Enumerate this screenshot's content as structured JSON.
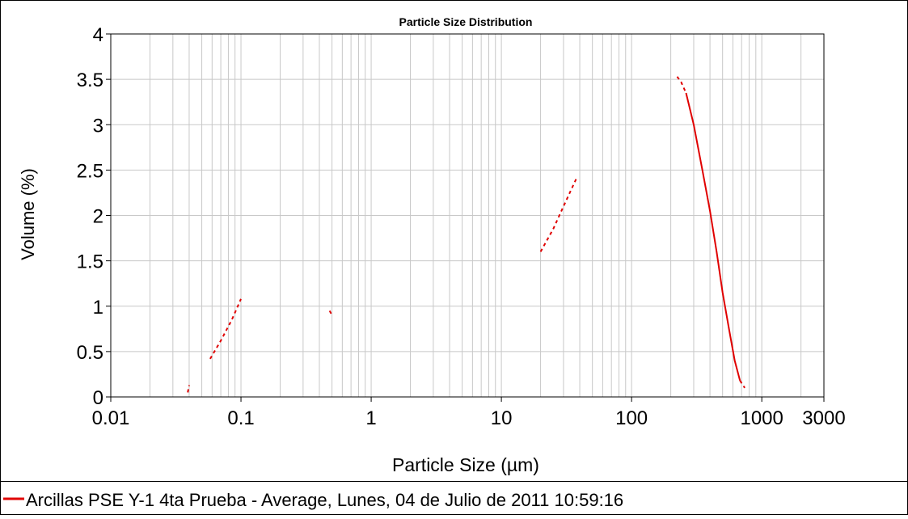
{
  "colors": {
    "background": "#ffffff",
    "grid": "#c8c8c8",
    "frame": "#000000",
    "series": "#e00000"
  },
  "chart_data": {
    "type": "line",
    "title": "Particle Size Distribution",
    "xlabel": "Particle Size (µm)",
    "ylabel": "Volume (%)",
    "x_scale": "log",
    "xlim": [
      0.01,
      3000
    ],
    "ylim": [
      0,
      4
    ],
    "xticks": [
      0.01,
      0.1,
      1,
      10,
      100,
      1000,
      3000
    ],
    "xtick_labels": [
      "0.01",
      "0.1",
      "1",
      "10",
      "100",
      "1000",
      "3000"
    ],
    "yticks": [
      0,
      0.5,
      1,
      1.5,
      2,
      2.5,
      3,
      3.5,
      4
    ],
    "ytick_labels": [
      "0",
      "0.5",
      "1",
      "1.5",
      "2",
      "2.5",
      "3",
      "3.5",
      "4"
    ],
    "grid": true,
    "legend_position": "bottom-left",
    "series": [
      {
        "name": "Arcillas PSE Y-1 4ta Prueba - Average, Lunes, 04 de Julio de 2011 10:59:16",
        "color": "#e00000",
        "segments": [
          {
            "style": "dashed",
            "points": [
              [
                0.039,
                0.05
              ],
              [
                0.04,
                0.13
              ]
            ]
          },
          {
            "style": "dashed",
            "points": [
              [
                0.058,
                0.42
              ],
              [
                0.07,
                0.62
              ],
              [
                0.085,
                0.85
              ],
              [
                0.1,
                1.08
              ]
            ]
          },
          {
            "style": "dashed",
            "points": [
              [
                0.48,
                0.95
              ],
              [
                0.5,
                0.9
              ]
            ]
          },
          {
            "style": "dashed",
            "points": [
              [
                20,
                1.6
              ],
              [
                25,
                1.85
              ],
              [
                30,
                2.1
              ],
              [
                38,
                2.42
              ]
            ]
          },
          {
            "style": "dashed",
            "points": [
              [
                224,
                3.53
              ],
              [
                240,
                3.47
              ],
              [
                262,
                3.35
              ]
            ]
          },
          {
            "style": "solid",
            "points": [
              [
                262,
                3.35
              ],
              [
                300,
                3.0
              ],
              [
                350,
                2.5
              ],
              [
                400,
                2.05
              ],
              [
                450,
                1.6
              ],
              [
                500,
                1.15
              ],
              [
                560,
                0.75
              ],
              [
                620,
                0.4
              ],
              [
                680,
                0.18
              ]
            ]
          },
          {
            "style": "dashed",
            "points": [
              [
                680,
                0.18
              ],
              [
                740,
                0.1
              ]
            ]
          }
        ]
      }
    ]
  }
}
